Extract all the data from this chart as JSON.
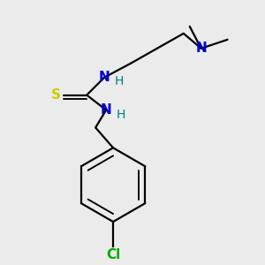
{
  "bg_color": "#ebebeb",
  "bond_color": "#000000",
  "N_color": "#0000cc",
  "S_color": "#cccc00",
  "Cl_color": "#00aa00",
  "H_color": "#008080",
  "lw": 1.6,
  "figsize": [
    3.0,
    3.0
  ],
  "dpi": 100,
  "xlim": [
    0,
    300
  ],
  "ylim": [
    0,
    300
  ]
}
